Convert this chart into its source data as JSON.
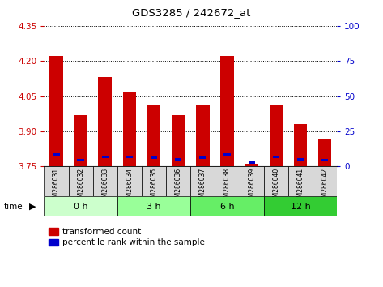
{
  "title": "GDS3285 / 242672_at",
  "samples": [
    "GSM286031",
    "GSM286032",
    "GSM286033",
    "GSM286034",
    "GSM286035",
    "GSM286036",
    "GSM286037",
    "GSM286038",
    "GSM286039",
    "GSM286040",
    "GSM286041",
    "GSM286042"
  ],
  "red_values": [
    4.22,
    3.97,
    4.13,
    4.07,
    4.01,
    3.97,
    4.01,
    4.22,
    3.76,
    4.01,
    3.93,
    3.87
  ],
  "blue_values": [
    3.8,
    3.778,
    3.79,
    3.79,
    3.788,
    3.782,
    3.788,
    3.8,
    3.768,
    3.79,
    3.782,
    3.778
  ],
  "baseline": 3.75,
  "ylim_left": [
    3.75,
    4.35
  ],
  "ylim_right": [
    0,
    100
  ],
  "yticks_left": [
    3.75,
    3.9,
    4.05,
    4.2,
    4.35
  ],
  "yticks_right": [
    0,
    25,
    50,
    75,
    100
  ],
  "group_labels": [
    "0 h",
    "3 h",
    "6 h",
    "12 h"
  ],
  "group_colors": [
    "#ccffcc",
    "#99ff99",
    "#66ee66",
    "#33cc33"
  ],
  "group_ranges": [
    [
      0,
      3
    ],
    [
      3,
      6
    ],
    [
      6,
      9
    ],
    [
      9,
      12
    ]
  ],
  "bar_color_red": "#cc0000",
  "bar_color_blue": "#0000cc",
  "tick_bg": "#d8d8d8",
  "left_tick_color": "#cc0000",
  "right_tick_color": "#0000cc",
  "legend_red": "transformed count",
  "legend_blue": "percentile rank within the sample"
}
